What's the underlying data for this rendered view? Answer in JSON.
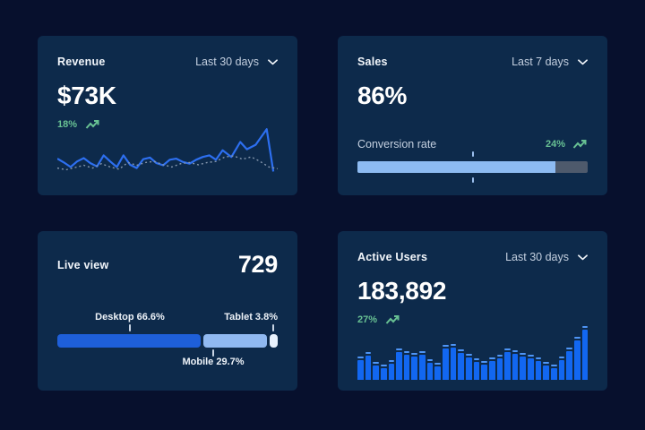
{
  "colors": {
    "page_bg": "#07102d",
    "card_bg": "#0d2a4b",
    "accent_green": "#68c193",
    "revenue_line": "#2d6ff0",
    "revenue_prev_line": "#8496ad",
    "progress_fill": "#8dbbf2",
    "progress_track": "#4e5a6c",
    "bar_fill": "#1267f1",
    "bar_cap": "#4e95f6"
  },
  "cards": {
    "revenue": {
      "title": "Revenue",
      "period": "Last 30 days",
      "value": "$73K",
      "delta": "18%"
    },
    "sales": {
      "title": "Sales",
      "period": "Last 7 days",
      "value": "86%",
      "metric_label": "Conversion rate",
      "delta": "24%"
    },
    "live": {
      "title": "Live view",
      "value": "729",
      "desktop_label": "Desktop 66.6%",
      "mobile_label": "Mobile 29.7%",
      "tablet_label": "Tablet 3.8%"
    },
    "active": {
      "title": "Active Users",
      "period": "Last 30 days",
      "value": "183,892",
      "delta": "27%"
    }
  },
  "chart_data": [
    {
      "type": "line",
      "title": "Revenue",
      "period": "Last 30 days",
      "current_value": "$73K",
      "change_percent": 18,
      "axes_visible": false,
      "series": [
        {
          "name": "current",
          "style": "solid",
          "color": "#2d6ff0",
          "points": [
            [
              0,
              55
            ],
            [
              3,
              62
            ],
            [
              6,
              70
            ],
            [
              9,
              60
            ],
            [
              12,
              54
            ],
            [
              15,
              63
            ],
            [
              18,
              69
            ],
            [
              21,
              49
            ],
            [
              24,
              60
            ],
            [
              27,
              70
            ],
            [
              30,
              49
            ],
            [
              33,
              66
            ],
            [
              36,
              72
            ],
            [
              39,
              56
            ],
            [
              42,
              53
            ],
            [
              45,
              63
            ],
            [
              48,
              67
            ],
            [
              51,
              57
            ],
            [
              54,
              55
            ],
            [
              57,
              61
            ],
            [
              60,
              64
            ],
            [
              63,
              57
            ],
            [
              66,
              52
            ],
            [
              69,
              49
            ],
            [
              72,
              57
            ],
            [
              75,
              40
            ],
            [
              79,
              52
            ],
            [
              83,
              25
            ],
            [
              86,
              38
            ],
            [
              90,
              30
            ],
            [
              95,
              2
            ],
            [
              98,
              78
            ]
          ]
        },
        {
          "name": "previous",
          "style": "dashed",
          "color": "#8496ad",
          "points": [
            [
              0,
              72
            ],
            [
              4,
              75
            ],
            [
              8,
              71
            ],
            [
              12,
              67
            ],
            [
              16,
              72
            ],
            [
              20,
              64
            ],
            [
              24,
              70
            ],
            [
              28,
              74
            ],
            [
              32,
              62
            ],
            [
              36,
              67
            ],
            [
              40,
              62
            ],
            [
              44,
              60
            ],
            [
              48,
              66
            ],
            [
              52,
              70
            ],
            [
              56,
              64
            ],
            [
              60,
              62
            ],
            [
              64,
              66
            ],
            [
              68,
              62
            ],
            [
              72,
              60
            ],
            [
              76,
              52
            ],
            [
              80,
              50
            ],
            [
              84,
              56
            ],
            [
              88,
              52
            ],
            [
              92,
              60
            ],
            [
              96,
              70
            ],
            [
              100,
              73
            ]
          ]
        }
      ]
    },
    {
      "type": "progress",
      "title": "Sales",
      "metric": "Conversion rate",
      "period": "Last 7 days",
      "value_percent": 86,
      "change_percent": 24,
      "marker_percent": 50
    },
    {
      "type": "stacked-bar",
      "title": "Live view",
      "total": 729,
      "segments": [
        {
          "label": "Desktop",
          "percent": 66.6,
          "color": "#1e5fd9"
        },
        {
          "label": "Mobile",
          "percent": 29.7,
          "color": "#90b9f1"
        },
        {
          "label": "Tablet",
          "percent": 3.8,
          "color": "#e9f2fd"
        }
      ]
    },
    {
      "type": "bar",
      "title": "Active Users",
      "period": "Last 30 days",
      "current_value": 183892,
      "change_percent": 27,
      "values": [
        40,
        48,
        28,
        24,
        33,
        55,
        50,
        46,
        50,
        34,
        27,
        62,
        65,
        54,
        44,
        36,
        31,
        38,
        42,
        55,
        52,
        46,
        42,
        38,
        28,
        24,
        40,
        58,
        78,
        100
      ]
    }
  ]
}
